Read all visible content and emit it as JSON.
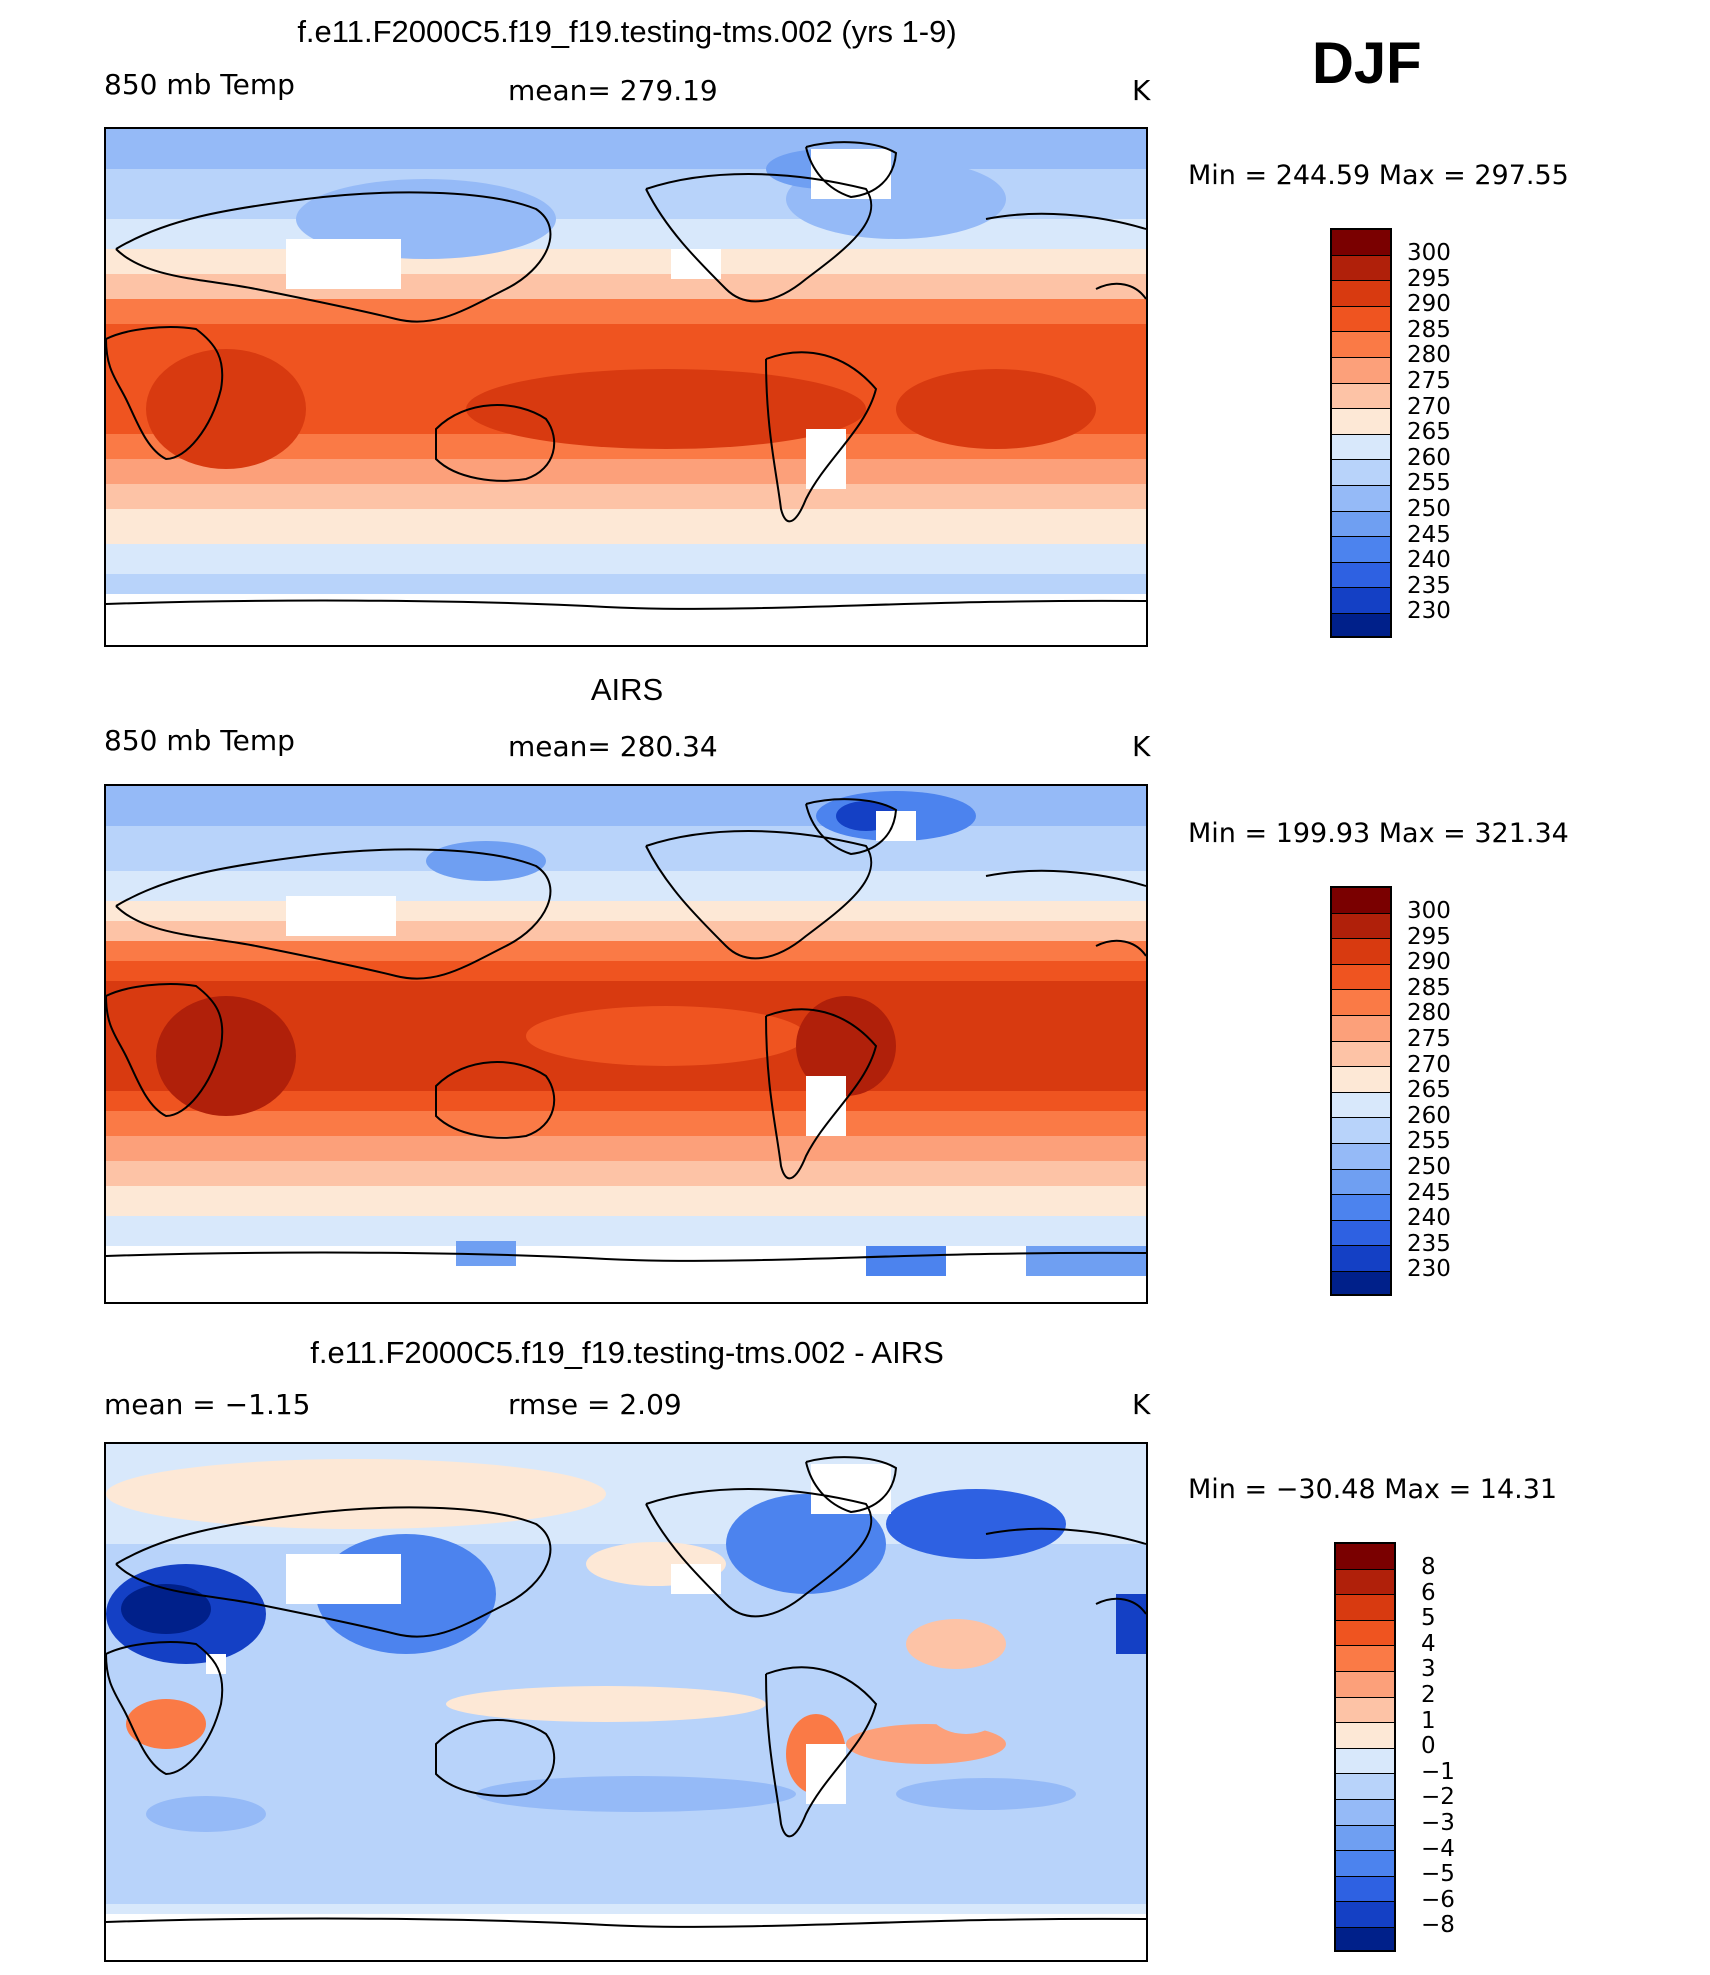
{
  "season": "DJF",
  "colorbars": {
    "temp": {
      "labels": [
        "300",
        "295",
        "290",
        "285",
        "280",
        "275",
        "270",
        "265",
        "260",
        "255",
        "250",
        "245",
        "240",
        "235",
        "230"
      ],
      "colors": [
        "#7a0000",
        "#b0200a",
        "#d83a10",
        "#ef5420",
        "#fa7a46",
        "#fca07a",
        "#fdc3a6",
        "#fde8d6",
        "#d8e8fb",
        "#b8d3fa",
        "#95baf7",
        "#6f9ff2",
        "#4c83ee",
        "#2e61e2",
        "#1440c5",
        "#00208a"
      ]
    },
    "diff": {
      "labels": [
        "8",
        "6",
        "5",
        "4",
        "3",
        "2",
        "1",
        "0",
        "−1",
        "−2",
        "−3",
        "−4",
        "−5",
        "−6",
        "−8"
      ],
      "colors": [
        "#7a0000",
        "#b0200a",
        "#d83a10",
        "#ef5420",
        "#fa7a46",
        "#fca07a",
        "#fdc3a6",
        "#fde8d6",
        "#d8e8fb",
        "#b8d3fa",
        "#95baf7",
        "#6f9ff2",
        "#4c83ee",
        "#2e61e2",
        "#1440c5",
        "#00208a"
      ]
    }
  },
  "panels": [
    {
      "title": "f.e11.F2000C5.f19_f19.testing-tms.002 (yrs 1-9)",
      "left_label": "850 mb Temp",
      "center_label": "mean=  279.19",
      "right_label": "K",
      "minmax": "Min  =  244.59  Max  =  297.55"
    },
    {
      "title": "AIRS",
      "left_label": "850 mb Temp",
      "center_label": "mean=  280.34",
      "right_label": "K",
      "minmax": "Min  =  199.93  Max  =  321.34"
    },
    {
      "title": "f.e11.F2000C5.f19_f19.testing-tms.002 - AIRS",
      "left_label": "mean  =    −1.15",
      "center_label": "rmse  =     2.09",
      "right_label": "K",
      "minmax": "Min  =  −30.48  Max  =    14.31"
    }
  ]
}
